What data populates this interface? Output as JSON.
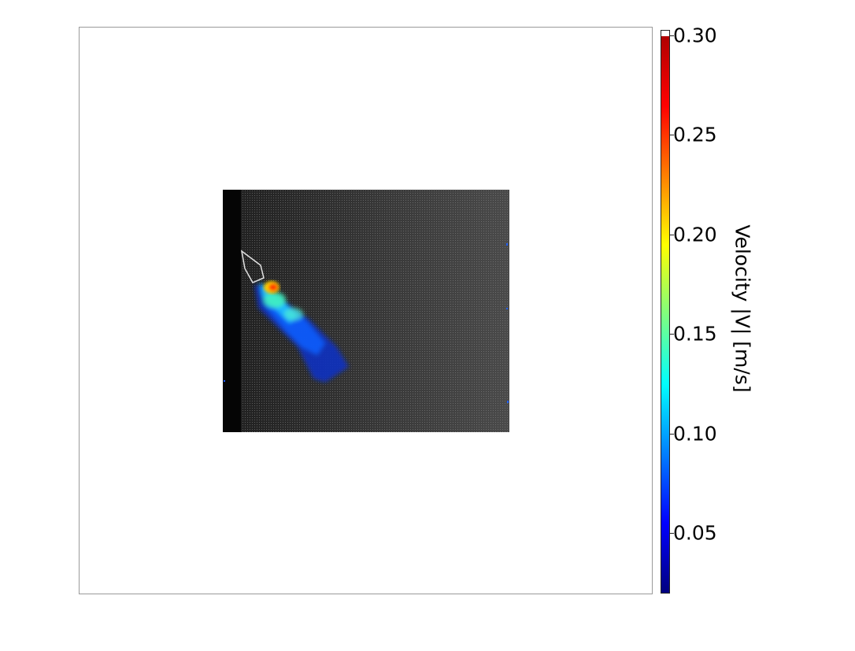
{
  "chart_data": {
    "type": "heatmap",
    "title": "",
    "description_colormap": "jet",
    "colorbar": {
      "label": "Velocity |V| [m/s]",
      "ticks": [
        "0.30",
        "0.25",
        "0.20",
        "0.15",
        "0.10",
        "0.05"
      ],
      "tick_values": [
        0.3,
        0.25,
        0.2,
        0.15,
        0.1,
        0.05
      ],
      "range": [
        0.02,
        0.3
      ],
      "colors": [
        "#00007f",
        "#0000ff",
        "#007fff",
        "#00ffff",
        "#7fff7f",
        "#ffff00",
        "#ff7f00",
        "#ff0000",
        "#b00000"
      ]
    },
    "background": {
      "frame_color": "#9a9a9a",
      "image_color": "#2a2a2a"
    }
  }
}
